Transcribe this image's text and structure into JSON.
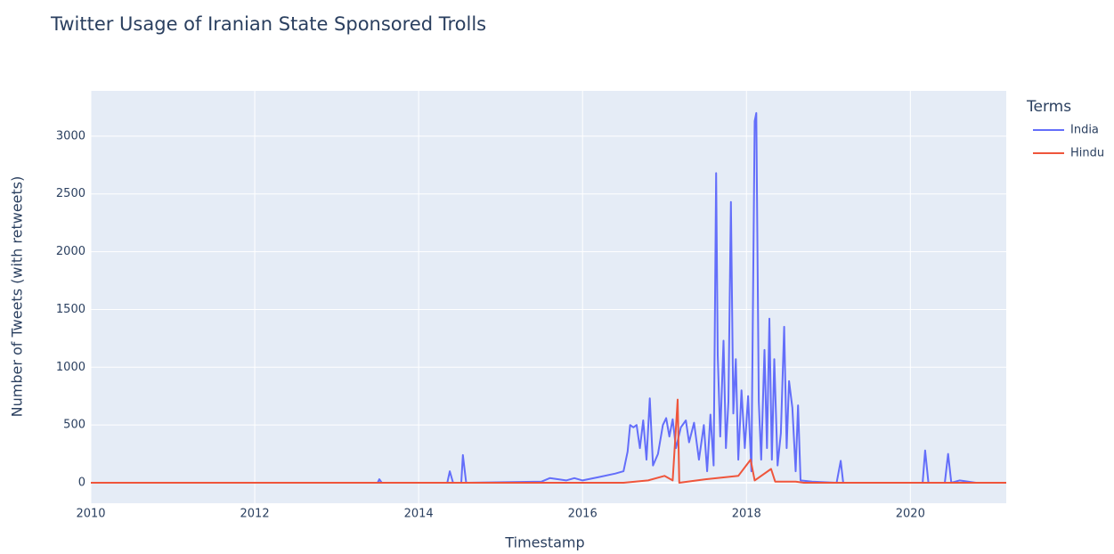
{
  "chart_data": {
    "type": "line",
    "title": "Twitter Usage of Iranian State Sponsored Trolls",
    "x_label": "Timestamp",
    "y_label": "Number of Tweets (with retweets)",
    "legend_title": "Terms",
    "legend_position": "right",
    "grid": true,
    "xlim": [
      2010,
      2021.17
    ],
    "xticks": [
      2010,
      2012,
      2014,
      2016,
      2018,
      2020
    ],
    "ylim": [
      -177,
      3392
    ],
    "yticks": [
      0,
      500,
      1000,
      1500,
      2000,
      2500,
      3000
    ],
    "series": [
      {
        "name": "India",
        "color": "#636efa",
        "x": [
          2010,
          2013.5,
          2013.52,
          2013.55,
          2014.35,
          2014.38,
          2014.42,
          2014.52,
          2014.54,
          2014.58,
          2015.5,
          2015.6,
          2015.8,
          2015.9,
          2016.0,
          2016.2,
          2016.4,
          2016.5,
          2016.55,
          2016.58,
          2016.62,
          2016.66,
          2016.7,
          2016.74,
          2016.78,
          2016.82,
          2016.86,
          2016.92,
          2016.98,
          2017.02,
          2017.06,
          2017.1,
          2017.14,
          2017.2,
          2017.26,
          2017.3,
          2017.36,
          2017.42,
          2017.48,
          2017.52,
          2017.56,
          2017.6,
          2017.63,
          2017.65,
          2017.68,
          2017.72,
          2017.75,
          2017.78,
          2017.81,
          2017.84,
          2017.87,
          2017.9,
          2017.94,
          2017.98,
          2018.02,
          2018.06,
          2018.1,
          2018.12,
          2018.15,
          2018.18,
          2018.22,
          2018.25,
          2018.28,
          2018.31,
          2018.34,
          2018.38,
          2018.42,
          2018.46,
          2018.49,
          2018.52,
          2018.56,
          2018.6,
          2018.63,
          2018.66,
          2018.8,
          2019.1,
          2019.15,
          2019.18,
          2020.15,
          2020.18,
          2020.22,
          2020.42,
          2020.46,
          2020.5,
          2020.6,
          2020.8,
          2021.17
        ],
        "values": [
          0,
          0,
          30,
          0,
          0,
          100,
          0,
          0,
          240,
          0,
          10,
          40,
          20,
          40,
          20,
          50,
          80,
          100,
          270,
          500,
          480,
          500,
          300,
          540,
          200,
          730,
          150,
          250,
          500,
          560,
          400,
          550,
          300,
          480,
          540,
          350,
          520,
          200,
          500,
          100,
          590,
          150,
          2680,
          1100,
          400,
          1230,
          300,
          700,
          2430,
          600,
          1070,
          200,
          800,
          300,
          750,
          100,
          3130,
          3200,
          700,
          200,
          1150,
          300,
          1420,
          200,
          1070,
          150,
          430,
          1350,
          300,
          880,
          650,
          100,
          670,
          20,
          10,
          0,
          190,
          0,
          0,
          280,
          0,
          0,
          250,
          0,
          20,
          0,
          0
        ]
      },
      {
        "name": "Hindu",
        "color": "#ef553b",
        "x": [
          2010,
          2016.5,
          2016.8,
          2017.0,
          2017.1,
          2017.16,
          2017.18,
          2017.5,
          2017.9,
          2018.05,
          2018.1,
          2018.3,
          2018.35,
          2018.6,
          2018.7,
          2021.17
        ],
        "values": [
          0,
          0,
          20,
          60,
          20,
          720,
          0,
          30,
          60,
          200,
          20,
          120,
          10,
          10,
          0,
          0
        ]
      }
    ]
  }
}
